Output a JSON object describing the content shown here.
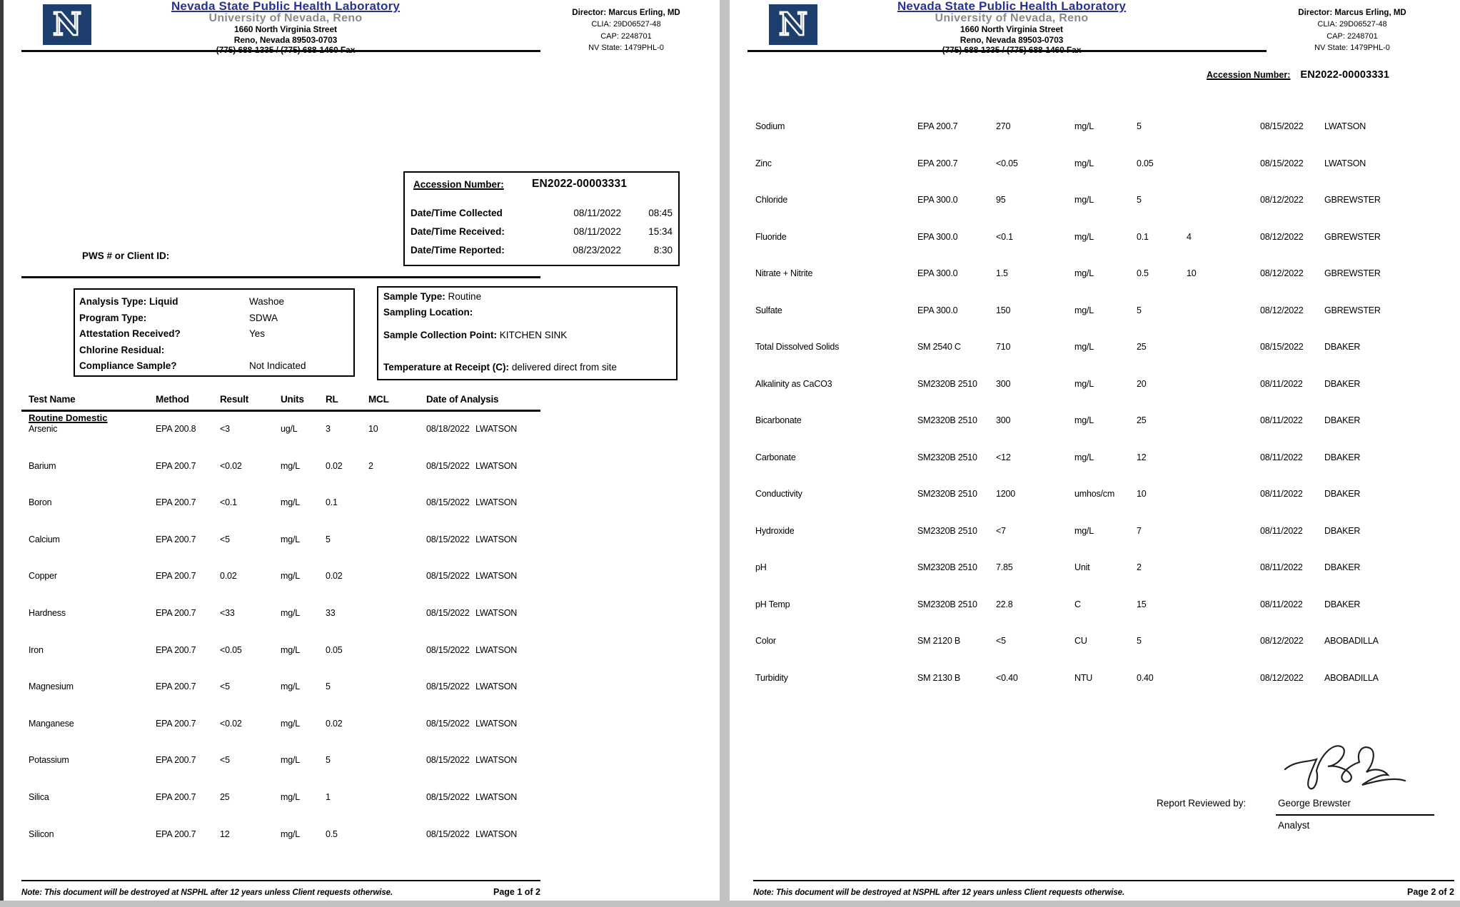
{
  "colors": {
    "title_blue": "#2b3192",
    "logo_navy": "#1e3e6d",
    "university_gray": "#8a8a8a",
    "rule_black": "#0a0a0a"
  },
  "header": {
    "logo_letter": "N",
    "lab_name": "Nevada State Public Health Laboratory",
    "university": "University of Nevada, Reno",
    "address_line1": "1660 North Virginia Street",
    "address_line2": "Reno, Nevada 89503-0703",
    "address_line3": "(775) 688-1335 / (775) 688-1460 Fax",
    "director_label": "Director:",
    "director_name": "Marcus Erling, MD",
    "clia": "CLIA: 29D06527-48",
    "cap": "CAP: 2248701",
    "nv_state": "NV State: 1479PHL-0"
  },
  "accession": {
    "label": "Accession Number:",
    "number": "EN2022-00003331",
    "rows": [
      {
        "label": "Date/Time Collected",
        "date": "08/11/2022",
        "time": "08:45"
      },
      {
        "label": "Date/Time Received:",
        "date": "08/11/2022",
        "time": "15:34"
      },
      {
        "label": "Date/Time Reported:",
        "date": "08/23/2022",
        "time": "8:30"
      }
    ]
  },
  "page1": {
    "pws_label": "PWS # or Client ID:",
    "info_left": {
      "rows": [
        {
          "label": "Analysis Type: Liquid",
          "value": "Washoe"
        },
        {
          "label": "Program Type:",
          "value": "SDWA"
        },
        {
          "label": "Attestation Received?",
          "value": "Yes"
        },
        {
          "label": "Chlorine Residual:",
          "value": ""
        },
        {
          "label": "Compliance Sample?",
          "value": "Not Indicated"
        }
      ]
    },
    "info_right": {
      "sample_type_label": "Sample Type:",
      "sample_type": "Routine",
      "sampling_location_label": "Sampling Location:",
      "collection_point_label": "Sample Collection Point:",
      "collection_point": "KITCHEN SINK",
      "temperature_label": "Temperature at Receipt (C):",
      "temperature": "delivered direct from site"
    },
    "table": {
      "headers": [
        "Test Name",
        "Method",
        "Result",
        "Units",
        "RL",
        "MCL",
        "Date of Analysis"
      ],
      "section": "Routine Domestic",
      "rows": [
        [
          "Arsenic",
          "EPA 200.8",
          "<3",
          "ug/L",
          "3",
          "10",
          "08/18/2022",
          "LWATSON"
        ],
        [
          "Barium",
          "EPA 200.7",
          "<0.02",
          "mg/L",
          "0.02",
          "2",
          "08/15/2022",
          "LWATSON"
        ],
        [
          "Boron",
          "EPA 200.7",
          "<0.1",
          "mg/L",
          "0.1",
          "",
          "08/15/2022",
          "LWATSON"
        ],
        [
          "Calcium",
          "EPA 200.7",
          "<5",
          "mg/L",
          "5",
          "",
          "08/15/2022",
          "LWATSON"
        ],
        [
          "Copper",
          "EPA 200.7",
          "0.02",
          "mg/L",
          "0.02",
          "",
          "08/15/2022",
          "LWATSON"
        ],
        [
          "Hardness",
          "EPA 200.7",
          "<33",
          "mg/L",
          "33",
          "",
          "08/15/2022",
          "LWATSON"
        ],
        [
          "Iron",
          "EPA 200.7",
          "<0.05",
          "mg/L",
          "0.05",
          "",
          "08/15/2022",
          "LWATSON"
        ],
        [
          "Magnesium",
          "EPA 200.7",
          "<5",
          "mg/L",
          "5",
          "",
          "08/15/2022",
          "LWATSON"
        ],
        [
          "Manganese",
          "EPA 200.7",
          "<0.02",
          "mg/L",
          "0.02",
          "",
          "08/15/2022",
          "LWATSON"
        ],
        [
          "Potassium",
          "EPA 200.7",
          "<5",
          "mg/L",
          "5",
          "",
          "08/15/2022",
          "LWATSON"
        ],
        [
          "Silica",
          "EPA 200.7",
          "25",
          "mg/L",
          "1",
          "",
          "08/15/2022",
          "LWATSON"
        ],
        [
          "Silicon",
          "EPA 200.7",
          "12",
          "mg/L",
          "0.5",
          "",
          "08/15/2022",
          "LWATSON"
        ]
      ]
    },
    "footer_note": "Note:  This document will be destroyed at NSPHL after 12 years unless Client requests otherwise.",
    "page_number": "Page 1 of 2"
  },
  "page2": {
    "accession_label": "Accession Number:",
    "accession_number": "EN2022-00003331",
    "table_rows": [
      [
        "Sodium",
        "EPA 200.7",
        "270",
        "mg/L",
        "5",
        "",
        "08/15/2022",
        "LWATSON"
      ],
      [
        "Zinc",
        "EPA 200.7",
        "<0.05",
        "mg/L",
        "0.05",
        "",
        "08/15/2022",
        "LWATSON"
      ],
      [
        "Chloride",
        "EPA 300.0",
        "95",
        "mg/L",
        "5",
        "",
        "08/12/2022",
        "GBREWSTER"
      ],
      [
        "Fluoride",
        "EPA 300.0",
        "<0.1",
        "mg/L",
        "0.1",
        "4",
        "08/12/2022",
        "GBREWSTER"
      ],
      [
        "Nitrate + Nitrite",
        "EPA 300.0",
        "1.5",
        "mg/L",
        "0.5",
        "10",
        "08/12/2022",
        "GBREWSTER"
      ],
      [
        "Sulfate",
        "EPA 300.0",
        "150",
        "mg/L",
        "5",
        "",
        "08/12/2022",
        "GBREWSTER"
      ],
      [
        "Total Dissolved Solids",
        "SM 2540 C",
        "710",
        "mg/L",
        "25",
        "",
        "08/15/2022",
        "DBAKER"
      ],
      [
        "Alkalinity as CaCO3",
        "SM2320B 2510",
        "300",
        "mg/L",
        "20",
        "",
        "08/11/2022",
        "DBAKER"
      ],
      [
        "Bicarbonate",
        "SM2320B 2510",
        "300",
        "mg/L",
        "25",
        "",
        "08/11/2022",
        "DBAKER"
      ],
      [
        "Carbonate",
        "SM2320B 2510",
        "<12",
        "mg/L",
        "12",
        "",
        "08/11/2022",
        "DBAKER"
      ],
      [
        "Conductivity",
        "SM2320B 2510",
        "1200",
        "umhos/cm",
        "10",
        "",
        "08/11/2022",
        "DBAKER"
      ],
      [
        "Hydroxide",
        "SM2320B 2510",
        "<7",
        "mg/L",
        "7",
        "",
        "08/11/2022",
        "DBAKER"
      ],
      [
        "pH",
        "SM2320B 2510",
        "7.85",
        "Unit",
        "2",
        "",
        "08/11/2022",
        "DBAKER"
      ],
      [
        "pH Temp",
        "SM2320B 2510",
        "22.8",
        "C",
        "15",
        "",
        "08/11/2022",
        "DBAKER"
      ],
      [
        "Color",
        "SM 2120 B",
        "<5",
        "CU",
        "5",
        "",
        "08/12/2022",
        "ABOBADILLA"
      ],
      [
        "Turbidity",
        "SM 2130 B",
        "<0.40",
        "NTU",
        "0.40",
        "",
        "08/12/2022",
        "ABOBADILLA"
      ]
    ],
    "review": {
      "label": "Report Reviewed by:",
      "reviewer": "George Brewster",
      "title": "Analyst"
    },
    "footer_note": "Note:  This document will be destroyed at NSPHL after 12 years unless Client requests otherwise.",
    "page_number": "Page 2 of 2"
  }
}
